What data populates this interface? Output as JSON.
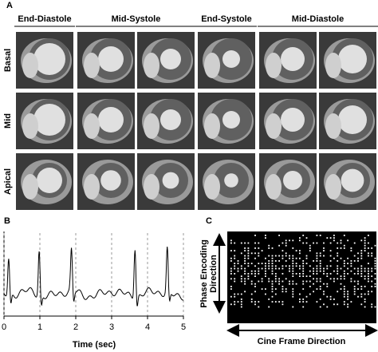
{
  "panels": {
    "a": {
      "label": "A",
      "phases": [
        "End-Diastole",
        "Mid-Systole",
        "End-Systole",
        "Mid-Diastole"
      ],
      "rows": [
        "Basal",
        "Mid",
        "Apical"
      ]
    },
    "b": {
      "label": "B",
      "xticks": [
        0,
        1,
        2,
        3,
        4,
        5
      ],
      "x_label": "Time (sec)"
    },
    "c": {
      "label": "C",
      "y_label": [
        "Phase Encoding",
        "Direction"
      ],
      "x_label": "Cine Frame Direction"
    }
  }
}
